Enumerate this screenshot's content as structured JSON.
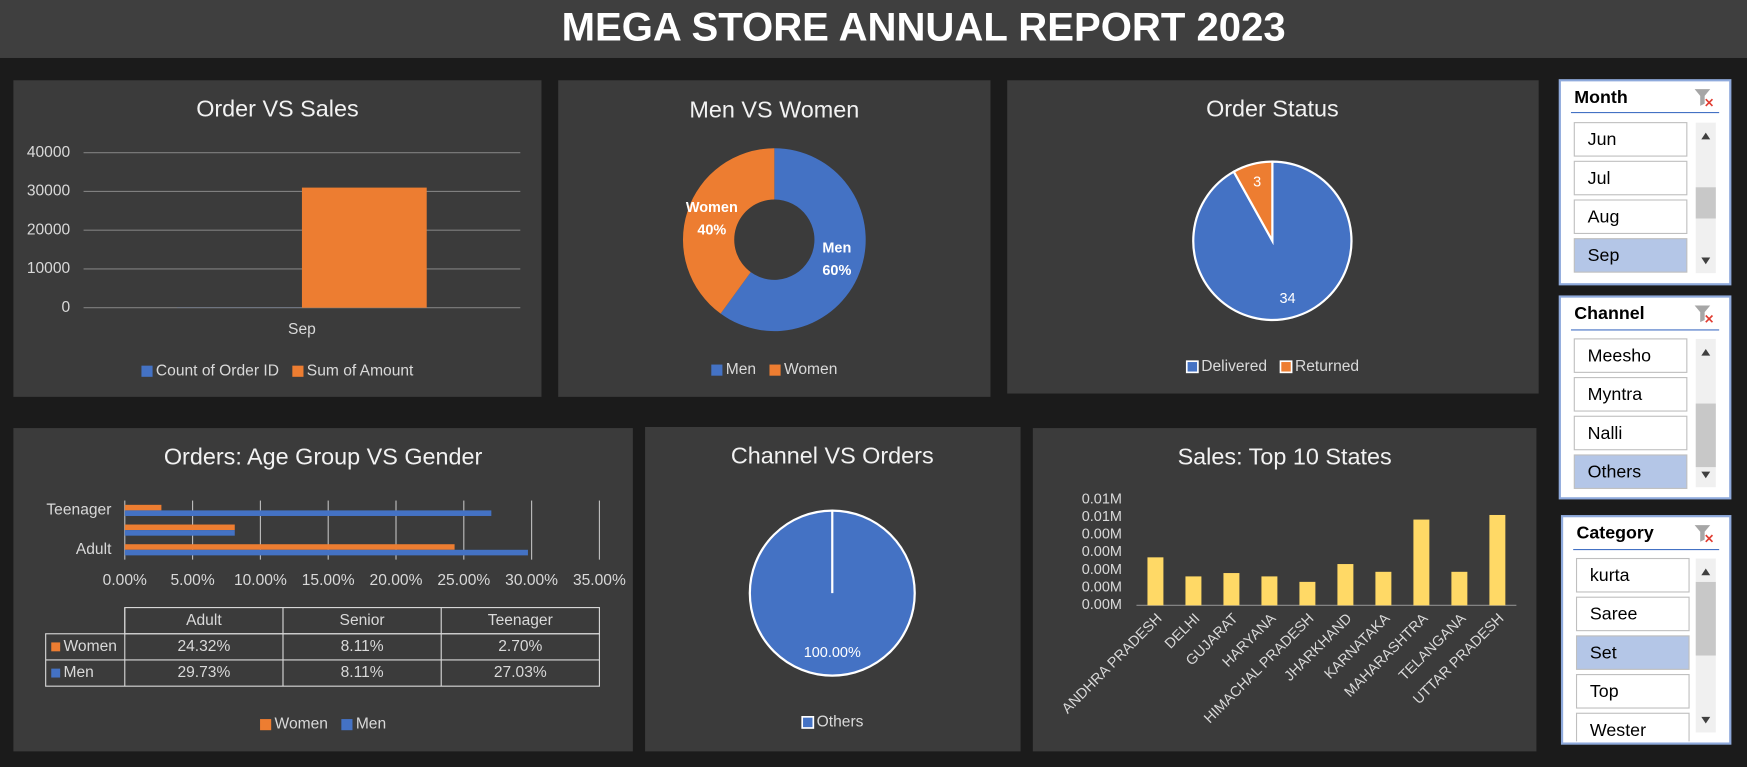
{
  "title": "MEGA STORE ANNUAL REPORT 2023",
  "chart_data": [
    {
      "type": "bar",
      "title": "Order VS Sales",
      "categories": [
        "Sep"
      ],
      "series": [
        {
          "name": "Count of Order ID",
          "color": "#4472c4",
          "values": [
            37
          ]
        },
        {
          "name": "Sum of Amount",
          "color": "#ed7d31",
          "values": [
            31000
          ]
        }
      ],
      "ylim": [
        0,
        40000
      ],
      "yticks": [
        0,
        10000,
        20000,
        30000,
        40000
      ],
      "grid": true,
      "legend": "bottom"
    },
    {
      "type": "donut",
      "title": "Men VS Women",
      "categories": [
        "Men",
        "Women"
      ],
      "values": [
        60,
        40
      ],
      "value_labels": [
        "60%",
        "40%"
      ],
      "colors": [
        "#4472c4",
        "#ed7d31"
      ],
      "legend": "bottom"
    },
    {
      "type": "pie",
      "title": "Order Status",
      "categories": [
        "Delivered",
        "Returned"
      ],
      "values": [
        34,
        3
      ],
      "colors": [
        "#4472c4",
        "#ed7d31"
      ],
      "legend": "bottom"
    },
    {
      "type": "hbar",
      "title": "Orders: Age Group VS Gender",
      "categories": [
        "Adult",
        "Senior",
        "Teenager"
      ],
      "series": [
        {
          "name": "Women",
          "color": "#ed7d31",
          "values": [
            24.32,
            8.11,
            2.7
          ],
          "value_labels": [
            "24.32%",
            "8.11%",
            "2.70%"
          ]
        },
        {
          "name": "Men",
          "color": "#4472c4",
          "values": [
            29.73,
            8.11,
            27.03
          ],
          "value_labels": [
            "29.73%",
            "8.11%",
            "27.03%"
          ]
        }
      ],
      "xlim": [
        0,
        35
      ],
      "xticks": [
        {
          "value": 0,
          "label": "0.00%"
        },
        {
          "value": 5,
          "label": "5.00%"
        },
        {
          "value": 10,
          "label": "10.00%"
        },
        {
          "value": 15,
          "label": "15.00%"
        },
        {
          "value": 20,
          "label": "20.00%"
        },
        {
          "value": 25,
          "label": "25.00%"
        },
        {
          "value": 30,
          "label": "30.00%"
        },
        {
          "value": 35,
          "label": "35.00%"
        }
      ],
      "grid": true,
      "data_table": true,
      "legend": "bottom"
    },
    {
      "type": "pie",
      "title": "Channel VS Orders",
      "categories": [
        "Others"
      ],
      "values": [
        100
      ],
      "value_labels": [
        "100.00%"
      ],
      "colors": [
        "#4472c4"
      ],
      "legend": "bottom"
    },
    {
      "type": "bar",
      "title": "Sales: Top 10 States",
      "categories": [
        "ANDHRA PRADESH",
        "DELHI",
        "GUJARAT",
        "HARYANA",
        "HIMACHAL PRADESH",
        "JHARKHAND",
        "KARNATAKA",
        "MAHARASHTRA",
        "TELANGANA",
        "UTTAR PRADESH"
      ],
      "values": [
        2720,
        1640,
        1830,
        1640,
        1330,
        2340,
        1900,
        4860,
        1900,
        5120
      ],
      "color": "#ffd966",
      "ylim": [
        0,
        6000
      ],
      "yticks": [
        {
          "value": 0,
          "label": "0.00M"
        },
        {
          "value": 1000,
          "label": "0.00M"
        },
        {
          "value": 2000,
          "label": "0.00M"
        },
        {
          "value": 3000,
          "label": "0.00M"
        },
        {
          "value": 4000,
          "label": "0.00M"
        },
        {
          "value": 5000,
          "label": "0.01M"
        },
        {
          "value": 6000,
          "label": "0.01M"
        }
      ],
      "grid": false
    }
  ],
  "slicers": [
    {
      "title": "Month",
      "items": [
        "Jun",
        "Jul",
        "Aug",
        "Sep"
      ],
      "selected": 3
    },
    {
      "title": "Channel",
      "items": [
        "Meesho",
        "Myntra",
        "Nalli",
        "Others"
      ],
      "selected": 3
    },
    {
      "title": "Category",
      "items": [
        "kurta",
        "Saree",
        "Set",
        "Top",
        "Wester"
      ],
      "selected": 2
    }
  ]
}
